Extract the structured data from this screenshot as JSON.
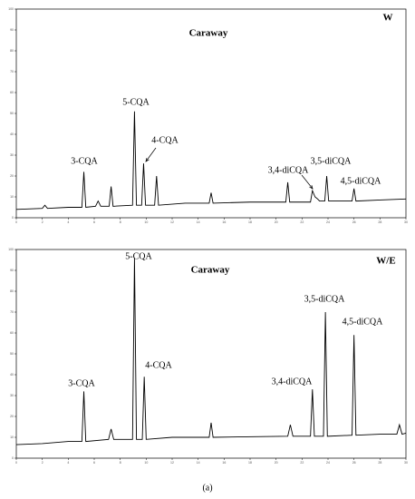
{
  "chart_data": [
    {
      "type": "line",
      "title": "Caraway",
      "panel_label": "W",
      "annotations": [
        "3-CQA",
        "5-CQA",
        "4-CQA",
        "3,4-diCQA",
        "3,5-diCQA",
        "4,5-diCQA"
      ],
      "color": "#000000",
      "x": [
        0,
        2.0,
        2.2,
        2.4,
        4.0,
        5.05,
        5.2,
        5.35,
        6.1,
        6.3,
        6.5,
        7.15,
        7.3,
        7.45,
        8.95,
        9.1,
        9.25,
        9.65,
        9.8,
        9.95,
        10.65,
        10.8,
        10.95,
        13,
        14.85,
        15.0,
        15.15,
        18,
        20.75,
        20.9,
        21.05,
        22.65,
        22.8,
        23.0,
        23.2,
        23.35,
        23.75,
        23.9,
        24.05,
        25.85,
        26.0,
        26.15,
        28,
        30
      ],
      "values": [
        4,
        4.5,
        6,
        4.5,
        5,
        5,
        22,
        5,
        5.5,
        8,
        5.5,
        5.5,
        15,
        5.5,
        6,
        51,
        6,
        6,
        26,
        6,
        6,
        20,
        6,
        7,
        7,
        12,
        7,
        7.5,
        7.5,
        17,
        7.5,
        7.5,
        13,
        10,
        9,
        8,
        8,
        20,
        8,
        8,
        14,
        8,
        8.5,
        9
      ],
      "xlim": [
        0,
        30
      ],
      "ylim": [
        0,
        100
      ],
      "xticks": [
        0,
        2,
        4,
        6,
        8,
        10,
        12,
        14,
        16,
        18,
        20,
        22,
        24,
        26,
        28,
        30
      ],
      "yticks": [
        0,
        10,
        20,
        30,
        40,
        50,
        60,
        70,
        80,
        90,
        100
      ]
    },
    {
      "type": "line",
      "title": "Caraway",
      "panel_label": "W/E",
      "annotations": [
        "3-CQA",
        "5-CQA",
        "4-CQA",
        "3,4-diCQA",
        "3,5-diCQA",
        "4,5-diCQA"
      ],
      "color": "#000000",
      "x": [
        0,
        2,
        4,
        5.05,
        5.2,
        5.35,
        7.1,
        7.3,
        7.5,
        8.95,
        9.1,
        9.25,
        9.7,
        9.85,
        10.0,
        12,
        14.85,
        15.0,
        15.15,
        20.9,
        21.1,
        21.3,
        22.65,
        22.8,
        22.95,
        23.65,
        23.8,
        23.95,
        25.85,
        26.0,
        26.15,
        28,
        29.3,
        29.5,
        29.7,
        30
      ],
      "values": [
        6.5,
        7,
        8,
        8,
        32,
        8,
        9,
        14,
        9,
        9,
        96,
        9,
        9,
        39,
        9,
        10,
        10,
        17,
        10,
        10.5,
        16,
        10.5,
        10.5,
        33,
        10.5,
        10.5,
        70,
        10.5,
        11,
        59,
        11,
        11.5,
        11.5,
        16,
        11.5,
        12
      ],
      "xlim": [
        0,
        30
      ],
      "ylim": [
        0,
        100
      ],
      "xticks": [
        0,
        2,
        4,
        6,
        8,
        10,
        12,
        14,
        16,
        18,
        20,
        22,
        24,
        26,
        28,
        30
      ],
      "yticks": [
        0,
        10,
        20,
        30,
        40,
        50,
        60,
        70,
        80,
        90,
        100
      ]
    }
  ],
  "caption": "(a)"
}
